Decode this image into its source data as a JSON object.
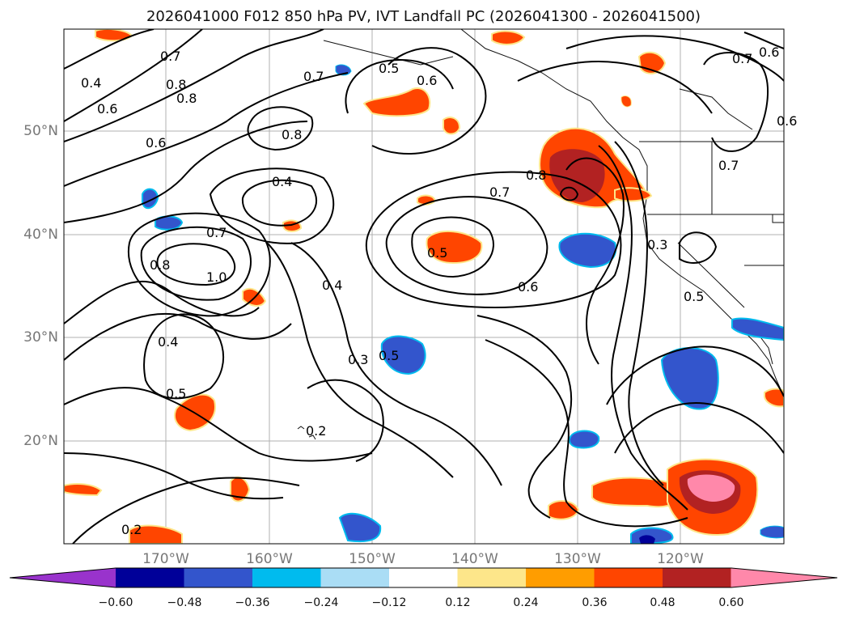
{
  "title": "2026041000 F012 850 hPa PV, IVT Landfall PC (2026041300 - 2026041500)",
  "lat_labels": [
    "50°N",
    "40°N",
    "30°N",
    "20°N"
  ],
  "lon_labels": [
    "170°W",
    "160°W",
    "150°W",
    "140°W",
    "130°W",
    "120°W"
  ],
  "contour_labels": [
    "0.4",
    "0.6",
    "0.7",
    "0.8",
    "0.5",
    "0.6",
    "0.7",
    "0.8",
    "0.4",
    "0.8",
    "0.7",
    "1.0",
    "0.8",
    "0.6",
    "0.7",
    "0.8",
    "0.5",
    "0.6",
    "0.4",
    "0.3",
    "0.5",
    "0.4",
    "0.5",
    "0.2",
    "0.2",
    "0.3",
    "0.7",
    "0.6",
    "0.7",
    "0.6",
    "0.5"
  ],
  "colorbar": {
    "ticks": [
      "−0.60",
      "−0.48",
      "−0.36",
      "−0.24",
      "−0.12",
      "0.12",
      "0.24",
      "0.36",
      "0.48",
      "0.60"
    ],
    "colors": [
      "#9933cc",
      "#000099",
      "#3355cc",
      "#00bbee",
      "#aaddf5",
      "#ffffff",
      "#fde68a",
      "#ff9d00",
      "#ff4500",
      "#b22222",
      "#ff88aa"
    ]
  }
}
